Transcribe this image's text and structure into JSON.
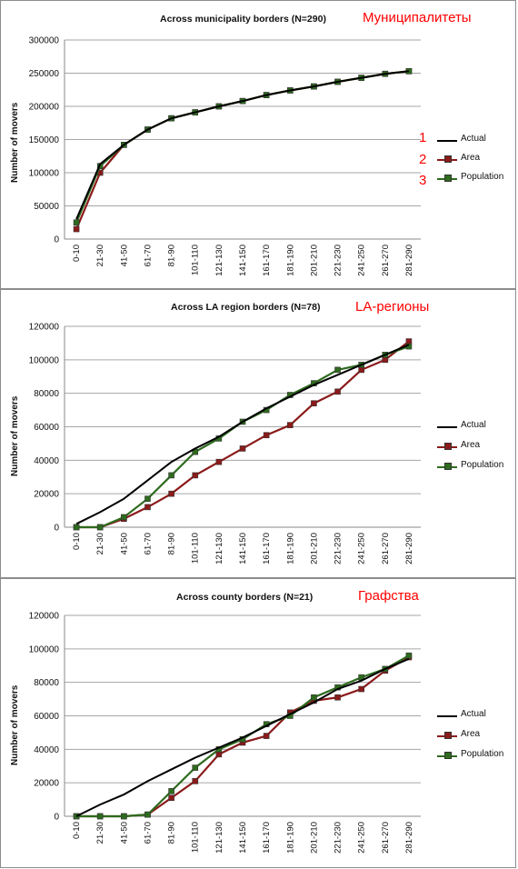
{
  "chart_data": [
    {
      "type": "line",
      "title": "Across municipality borders (N=290)",
      "annotation": "Муниципалитеты",
      "xlabel": "",
      "ylabel": "Number of movers",
      "ylim": [
        0,
        300000
      ],
      "yticks": [
        0,
        50000,
        100000,
        150000,
        200000,
        250000,
        300000
      ],
      "categories": [
        "0-10",
        "21-30",
        "41-50",
        "61-70",
        "81-90",
        "101-110",
        "121-130",
        "141-150",
        "161-170",
        "181-190",
        "201-210",
        "221-230",
        "241-250",
        "261-270",
        "281-290"
      ],
      "legend_numbers": [
        "1",
        "2",
        "3"
      ],
      "legend_position": "right",
      "series": [
        {
          "name": "Actual",
          "color": "#000000",
          "marker": "none",
          "values": [
            30000,
            113000,
            142000,
            165000,
            182000,
            191000,
            200000,
            208000,
            217000,
            224000,
            230000,
            237000,
            243000,
            249000,
            253000
          ]
        },
        {
          "name": "Area",
          "color": "#8b1a1a",
          "marker": "square",
          "values": [
            15000,
            100000,
            142000,
            165000,
            182000,
            191000,
            200000,
            208000,
            217000,
            224000,
            230000,
            237000,
            243000,
            249000,
            253000
          ]
        },
        {
          "name": "Population",
          "color": "#2e6b1e",
          "marker": "square",
          "values": [
            25000,
            110000,
            142000,
            165000,
            182000,
            191000,
            200000,
            208000,
            217000,
            224000,
            230000,
            237000,
            243000,
            249000,
            253000
          ]
        }
      ]
    },
    {
      "type": "line",
      "title": "Across LA region borders (N=78)",
      "annotation": "LA-регионы",
      "xlabel": "",
      "ylabel": "Number of movers",
      "ylim": [
        0,
        120000
      ],
      "yticks": [
        0,
        20000,
        40000,
        60000,
        80000,
        100000,
        120000
      ],
      "categories": [
        "0-10",
        "21-30",
        "41-50",
        "61-70",
        "81-90",
        "101-110",
        "121-130",
        "141-150",
        "161-170",
        "181-190",
        "201-210",
        "221-230",
        "241-250",
        "261-270",
        "281-290"
      ],
      "legend_numbers": [],
      "legend_position": "right",
      "series": [
        {
          "name": "Actual",
          "color": "#000000",
          "marker": "none",
          "values": [
            2000,
            9000,
            17000,
            28000,
            39000,
            47000,
            54000,
            63000,
            71000,
            78000,
            85000,
            91000,
            97000,
            103000,
            109000
          ]
        },
        {
          "name": "Area",
          "color": "#8b1a1a",
          "marker": "square",
          "values": [
            0,
            0,
            5000,
            12000,
            20000,
            31000,
            39000,
            47000,
            55000,
            61000,
            74000,
            81000,
            94000,
            100000,
            111000
          ]
        },
        {
          "name": "Population",
          "color": "#2e6b1e",
          "marker": "square",
          "values": [
            0,
            0,
            6000,
            17000,
            31000,
            45000,
            53000,
            63000,
            70000,
            79000,
            86000,
            94000,
            97000,
            103000,
            108000
          ]
        }
      ]
    },
    {
      "type": "line",
      "title": "Across county borders (N=21)",
      "annotation": "Графства",
      "xlabel": "",
      "ylabel": "Number of movers",
      "ylim": [
        0,
        120000
      ],
      "yticks": [
        0,
        20000,
        40000,
        60000,
        80000,
        100000,
        120000
      ],
      "categories": [
        "0-10",
        "21-30",
        "41-50",
        "61-70",
        "81-90",
        "101-110",
        "121-130",
        "141-150",
        "161-170",
        "181-190",
        "201-210",
        "221-230",
        "241-250",
        "261-270",
        "281-290"
      ],
      "legend_numbers": [],
      "legend_position": "right",
      "series": [
        {
          "name": "Actual",
          "color": "#000000",
          "marker": "none",
          "values": [
            0,
            7000,
            13000,
            21000,
            28000,
            35000,
            41000,
            47000,
            54000,
            61000,
            68000,
            76000,
            81000,
            88000,
            94000
          ]
        },
        {
          "name": "Area",
          "color": "#8b1a1a",
          "marker": "square",
          "values": [
            0,
            0,
            0,
            1000,
            11000,
            21000,
            37000,
            44000,
            48000,
            62000,
            69000,
            71000,
            76000,
            87000,
            95000
          ]
        },
        {
          "name": "Population",
          "color": "#2e6b1e",
          "marker": "square",
          "values": [
            0,
            0,
            0,
            1000,
            15000,
            29000,
            40000,
            46000,
            55000,
            60000,
            71000,
            77000,
            83000,
            88000,
            96000
          ]
        }
      ]
    }
  ]
}
